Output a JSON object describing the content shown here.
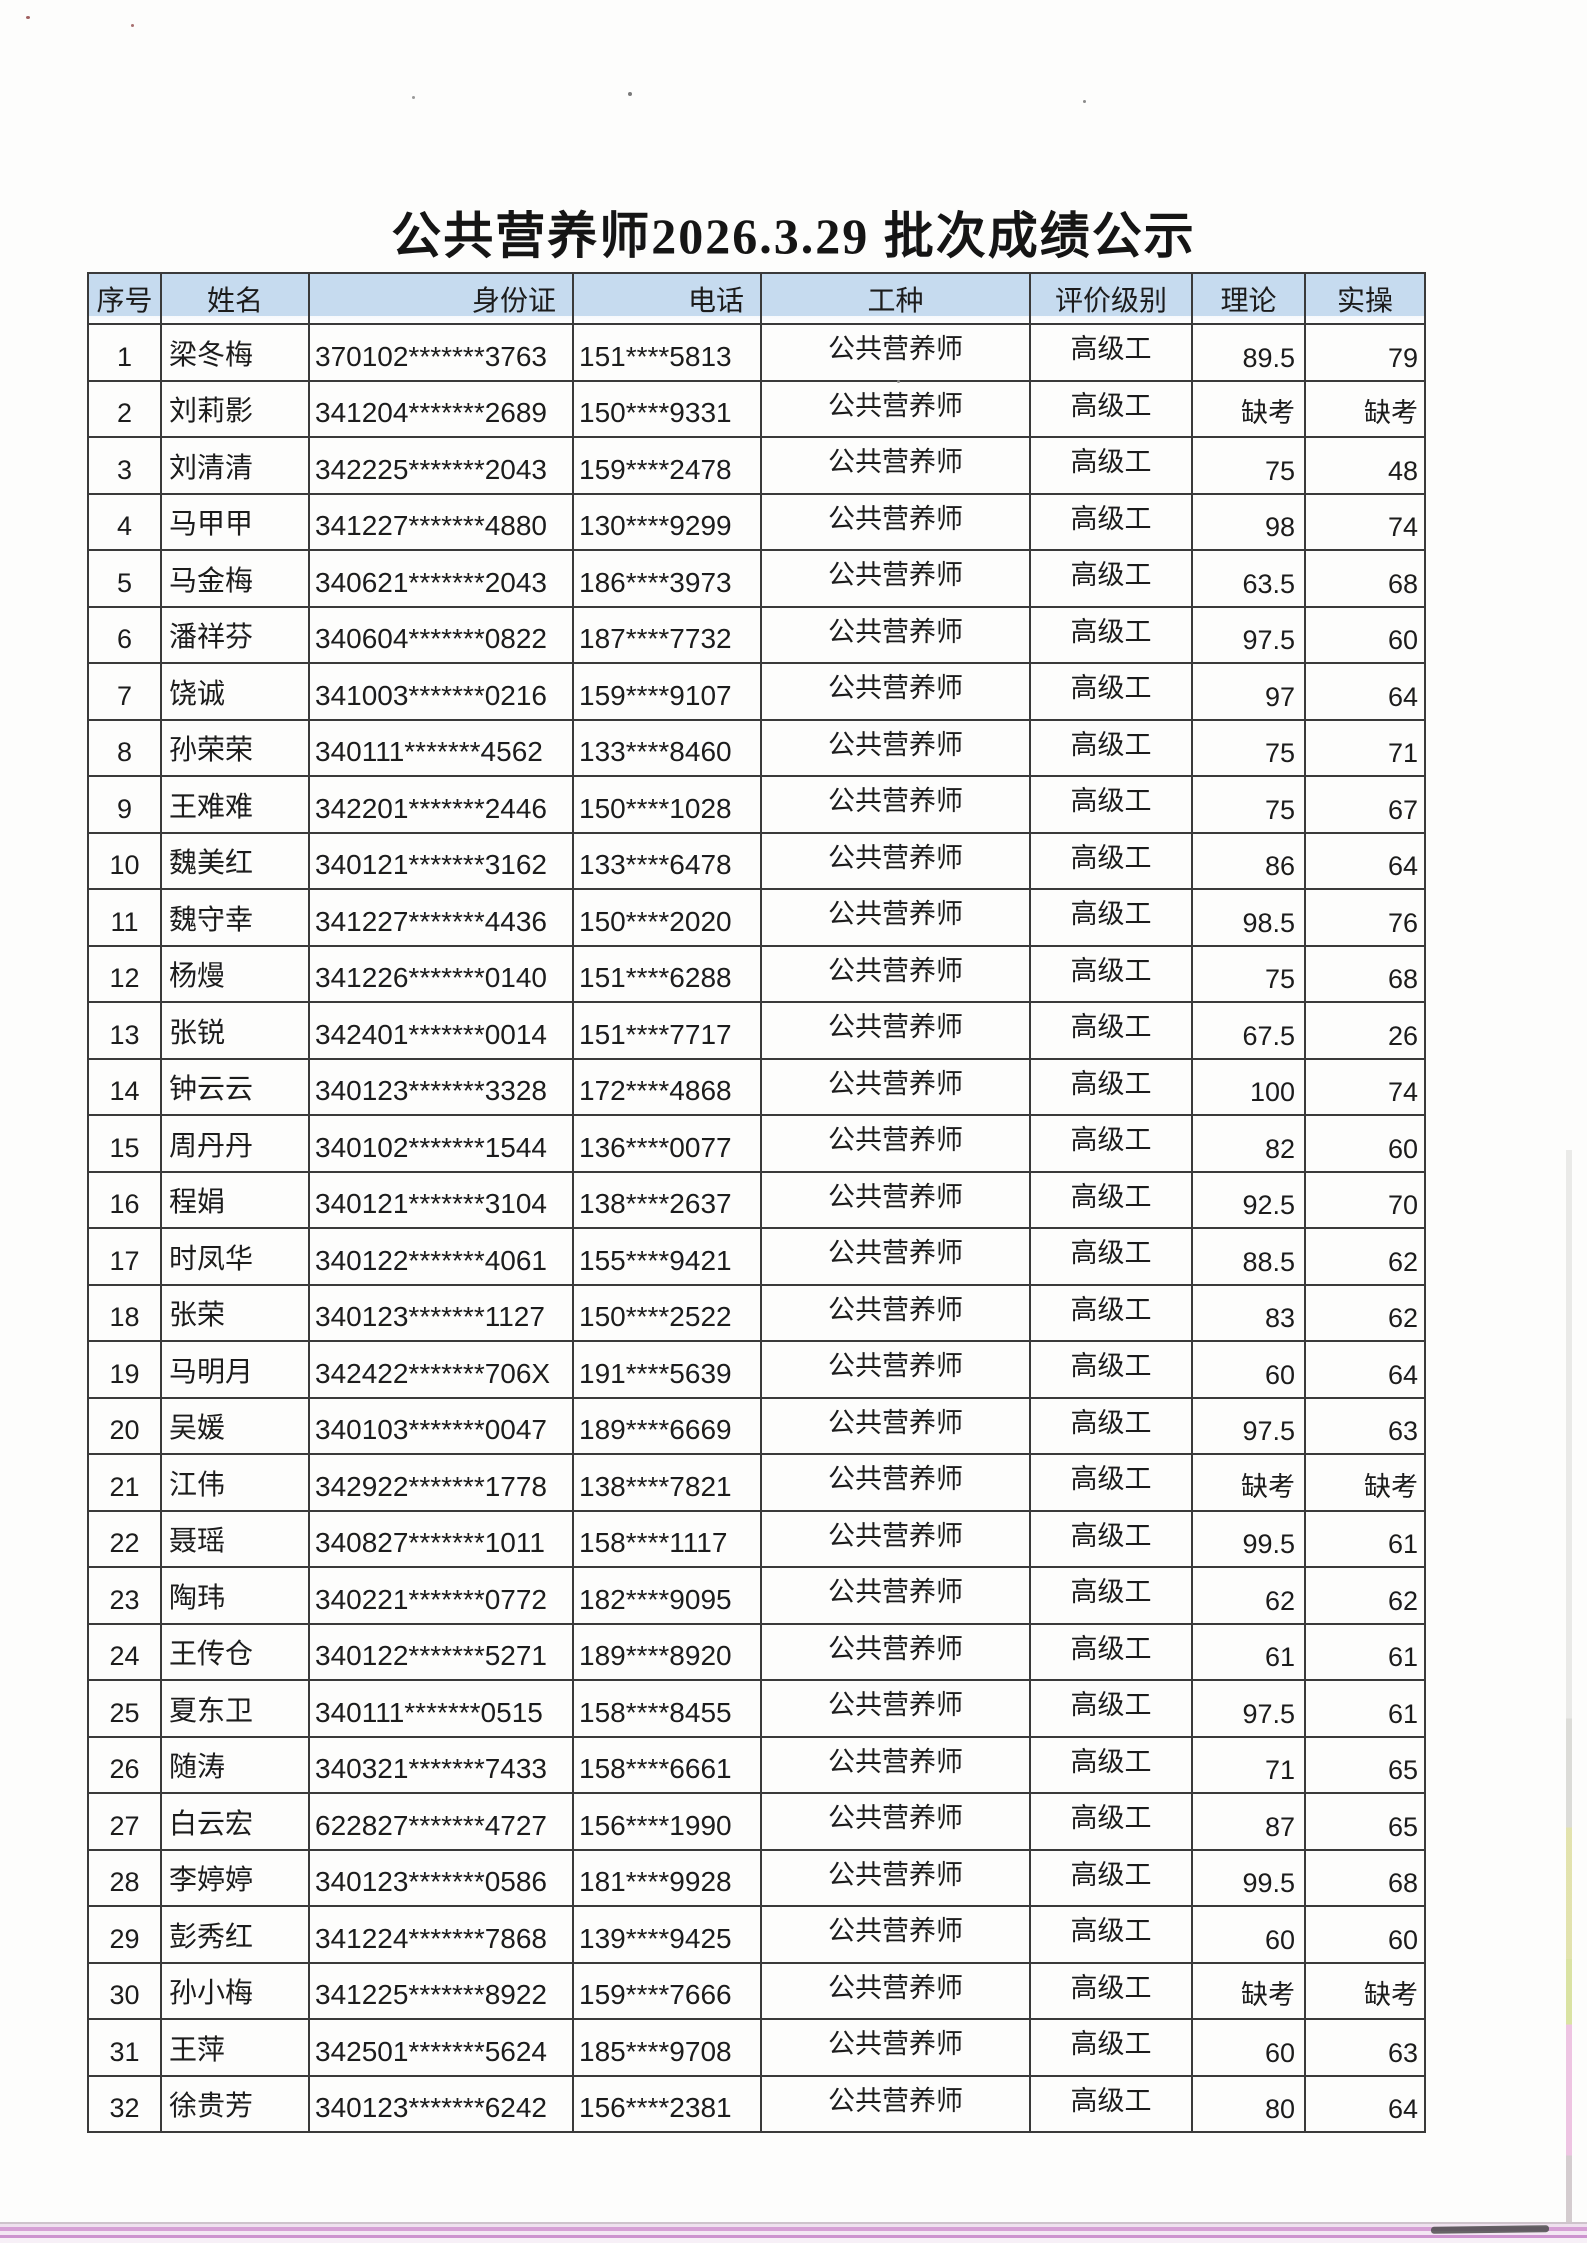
{
  "title": "公共营养师2026.3.29 批次成绩公示",
  "colors": {
    "header_bg": "#c6dbef",
    "border": "#3a3a3a",
    "bottom_band_pink": "#d6a0d5"
  },
  "table": {
    "headers": [
      "序号",
      "姓名",
      "身份证",
      "电话",
      "工种",
      "评价级别",
      "理论",
      "实操"
    ],
    "rows": [
      [
        "1",
        "梁冬梅",
        "370102*******3763",
        "151****5813",
        "公共营养师",
        "高级工",
        "89.5",
        "79"
      ],
      [
        "2",
        "刘莉影",
        "341204*******2689",
        "150****9331",
        "公共营养师",
        "高级工",
        "缺考",
        "缺考"
      ],
      [
        "3",
        "刘清清",
        "342225*******2043",
        "159****2478",
        "公共营养师",
        "高级工",
        "75",
        "48"
      ],
      [
        "4",
        "马甲甲",
        "341227*******4880",
        "130****9299",
        "公共营养师",
        "高级工",
        "98",
        "74"
      ],
      [
        "5",
        "马金梅",
        "340621*******2043",
        "186****3973",
        "公共营养师",
        "高级工",
        "63.5",
        "68"
      ],
      [
        "6",
        "潘祥芬",
        "340604*******0822",
        "187****7732",
        "公共营养师",
        "高级工",
        "97.5",
        "60"
      ],
      [
        "7",
        "饶诚",
        "341003*******0216",
        "159****9107",
        "公共营养师",
        "高级工",
        "97",
        "64"
      ],
      [
        "8",
        "孙荣荣",
        "340111*******4562",
        "133****8460",
        "公共营养师",
        "高级工",
        "75",
        "71"
      ],
      [
        "9",
        "王难难",
        "342201*******2446",
        "150****1028",
        "公共营养师",
        "高级工",
        "75",
        "67"
      ],
      [
        "10",
        "魏美红",
        "340121*******3162",
        "133****6478",
        "公共营养师",
        "高级工",
        "86",
        "64"
      ],
      [
        "11",
        "魏守幸",
        "341227*******4436",
        "150****2020",
        "公共营养师",
        "高级工",
        "98.5",
        "76"
      ],
      [
        "12",
        "杨熳",
        "341226*******0140",
        "151****6288",
        "公共营养师",
        "高级工",
        "75",
        "68"
      ],
      [
        "13",
        "张锐",
        "342401*******0014",
        "151****7717",
        "公共营养师",
        "高级工",
        "67.5",
        "26"
      ],
      [
        "14",
        "钟云云",
        "340123*******3328",
        "172****4868",
        "公共营养师",
        "高级工",
        "100",
        "74"
      ],
      [
        "15",
        "周丹丹",
        "340102*******1544",
        "136****0077",
        "公共营养师",
        "高级工",
        "82",
        "60"
      ],
      [
        "16",
        "程娟",
        "340121*******3104",
        "138****2637",
        "公共营养师",
        "高级工",
        "92.5",
        "70"
      ],
      [
        "17",
        "时凤华",
        "340122*******4061",
        "155****9421",
        "公共营养师",
        "高级工",
        "88.5",
        "62"
      ],
      [
        "18",
        "张荣",
        "340123*******1127",
        "150****2522",
        "公共营养师",
        "高级工",
        "83",
        "62"
      ],
      [
        "19",
        "马明月",
        "342422*******706X",
        "191****5639",
        "公共营养师",
        "高级工",
        "60",
        "64"
      ],
      [
        "20",
        "吴媛",
        "340103*******0047",
        "189****6669",
        "公共营养师",
        "高级工",
        "97.5",
        "63"
      ],
      [
        "21",
        "江伟",
        "342922*******1778",
        "138****7821",
        "公共营养师",
        "高级工",
        "缺考",
        "缺考"
      ],
      [
        "22",
        "聂瑶",
        "340827*******1011",
        "158****1117",
        "公共营养师",
        "高级工",
        "99.5",
        "61"
      ],
      [
        "23",
        "陶玮",
        "340221*******0772",
        "182****9095",
        "公共营养师",
        "高级工",
        "62",
        "62"
      ],
      [
        "24",
        "王传仓",
        "340122*******5271",
        "189****8920",
        "公共营养师",
        "高级工",
        "61",
        "61"
      ],
      [
        "25",
        "夏东卫",
        "340111*******0515",
        "158****8455",
        "公共营养师",
        "高级工",
        "97.5",
        "61"
      ],
      [
        "26",
        "随涛",
        "340321*******7433",
        "158****6661",
        "公共营养师",
        "高级工",
        "71",
        "65"
      ],
      [
        "27",
        "白云宏",
        "622827*******4727",
        "156****1990",
        "公共营养师",
        "高级工",
        "87",
        "65"
      ],
      [
        "28",
        "李婷婷",
        "340123*******0586",
        "181****9928",
        "公共营养师",
        "高级工",
        "99.5",
        "68"
      ],
      [
        "29",
        "彭秀红",
        "341224*******7868",
        "139****9425",
        "公共营养师",
        "高级工",
        "60",
        "60"
      ],
      [
        "30",
        "孙小梅",
        "341225*******8922",
        "159****7666",
        "公共营养师",
        "高级工",
        "缺考",
        "缺考"
      ],
      [
        "31",
        "王萍",
        "342501*******5624",
        "185****9708",
        "公共营养师",
        "高级工",
        "60",
        "63"
      ],
      [
        "32",
        "徐贵芳",
        "340123*******6242",
        "156****2381",
        "公共营养师",
        "高级工",
        "80",
        "64"
      ]
    ]
  }
}
